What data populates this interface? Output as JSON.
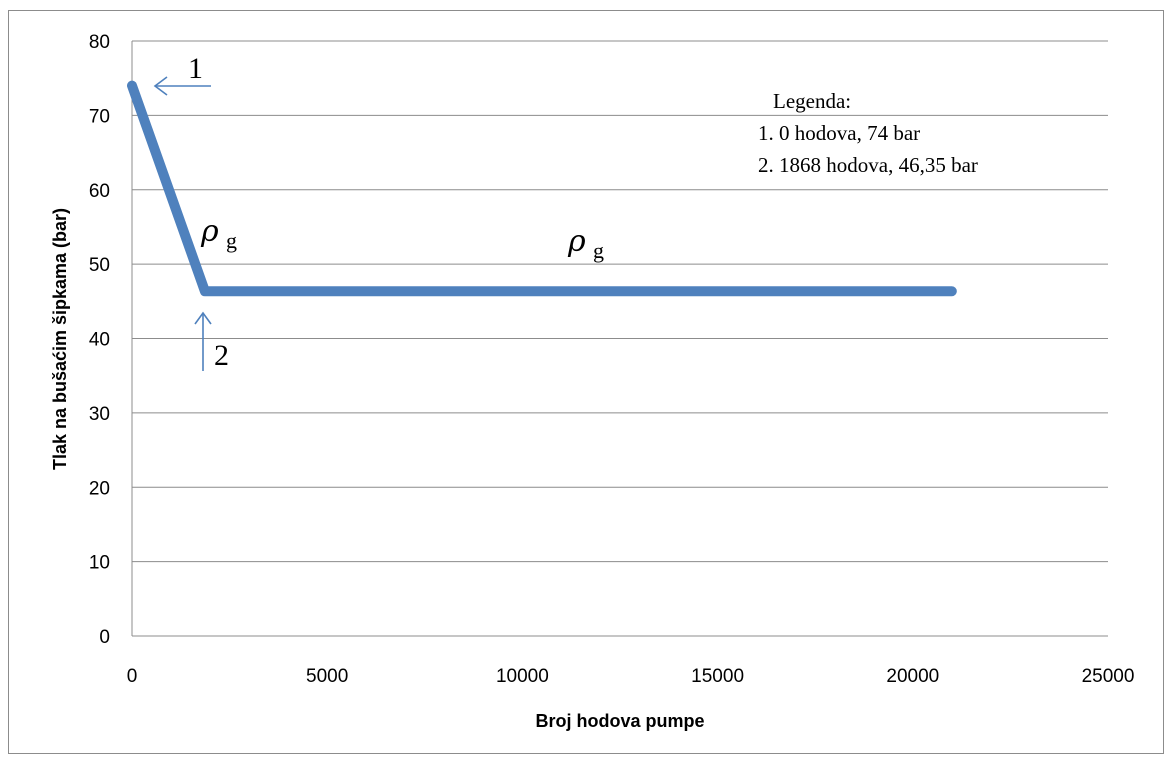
{
  "chart_data": {
    "type": "line",
    "xlabel": "Broj hodova pumpe",
    "ylabel": "Tlak na bušaćim šipkama  (bar)",
    "xlim": [
      0,
      25000
    ],
    "ylim": [
      0,
      80
    ],
    "x_ticks": [
      0,
      5000,
      10000,
      15000,
      20000,
      25000
    ],
    "y_ticks": [
      0,
      10,
      20,
      30,
      40,
      50,
      60,
      70,
      80
    ],
    "grid": "horizontal",
    "series": [
      {
        "color": "#4f81bd",
        "points": [
          [
            0,
            74
          ],
          [
            1868,
            46.35
          ],
          [
            21000,
            46.35
          ]
        ]
      }
    ],
    "legend": {
      "title": "Legenda:",
      "items": [
        "1. 0 hodova, 74 bar",
        "2. 1868 hodova, 46,35 bar"
      ]
    },
    "annotations": [
      {
        "label": "1",
        "x": 0,
        "y": 74,
        "arrow": "left"
      },
      {
        "label": "2",
        "x": 1868,
        "y": 46.35,
        "arrow": "up"
      }
    ],
    "rho_labels": [
      {
        "symbol": "ρ",
        "sub": "g",
        "segment": 1
      },
      {
        "symbol": "ρ",
        "sub": "g",
        "segment": 2
      }
    ]
  }
}
